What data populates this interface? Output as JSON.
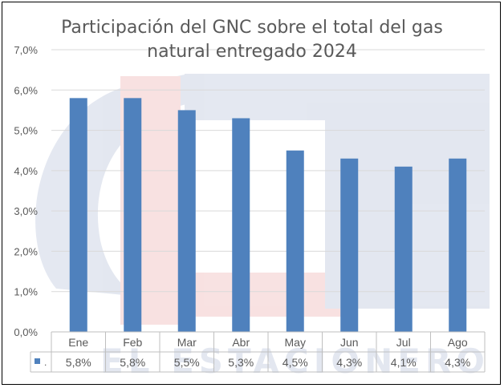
{
  "chart_data": {
    "type": "bar",
    "title_lines": [
      "Participación del GNC sobre el total del gas",
      "natural entregado 2024"
    ],
    "categories": [
      "Ene",
      "Feb",
      "Mar",
      "Abr",
      "May",
      "Jun",
      "Jul",
      "Ago"
    ],
    "series": [
      {
        "values": [
          5.8,
          5.8,
          5.5,
          5.3,
          4.5,
          4.3,
          4.1,
          4.3
        ],
        "table_label": ".",
        "table_values": [
          "5,8%",
          "5,8%",
          "5,5%",
          "5,3%",
          "4,5%",
          "4,3%",
          "4,1%",
          "4,3%"
        ]
      }
    ],
    "y_ticks": [
      "0,0%",
      "1,0%",
      "2,0%",
      "3,0%",
      "4,0%",
      "5,0%",
      "6,0%",
      "7,0%"
    ],
    "ylim": [
      0,
      7
    ],
    "grid": true,
    "legend": "data table below plot",
    "watermark_text": "EL ESTACIONERO",
    "colors": {
      "bar": "#4f81bd",
      "gridline": "#d9d9d9",
      "text": "#595959"
    }
  }
}
